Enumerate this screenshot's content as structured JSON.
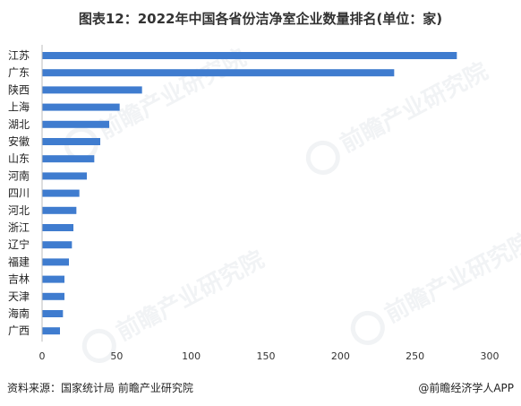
{
  "title": "图表12：2022年中国各省份洁净室企业数量排名(单位：家)",
  "source": "资料来源：国家统计局 前瞻产业研究院",
  "brand": "@前瞻经济学人APP",
  "watermark": "前瞻产业研究院",
  "colors": {
    "bar": "#3f7ccf",
    "axis": "#bdbdbd"
  },
  "chart_data": {
    "type": "bar",
    "orientation": "horizontal",
    "categories": [
      "江苏",
      "广东",
      "陕西",
      "上海",
      "湖北",
      "安徽",
      "山东",
      "河南",
      "四川",
      "河北",
      "浙江",
      "辽宁",
      "福建",
      "吉林",
      "天津",
      "海南",
      "广西"
    ],
    "values": [
      278,
      236,
      67,
      52,
      45,
      39,
      35,
      30,
      25,
      23,
      21,
      20,
      18,
      15,
      15,
      14,
      12
    ],
    "xlim": [
      0,
      300
    ],
    "xticks": [
      0,
      50,
      100,
      150,
      200,
      250,
      300
    ],
    "grid": false
  }
}
